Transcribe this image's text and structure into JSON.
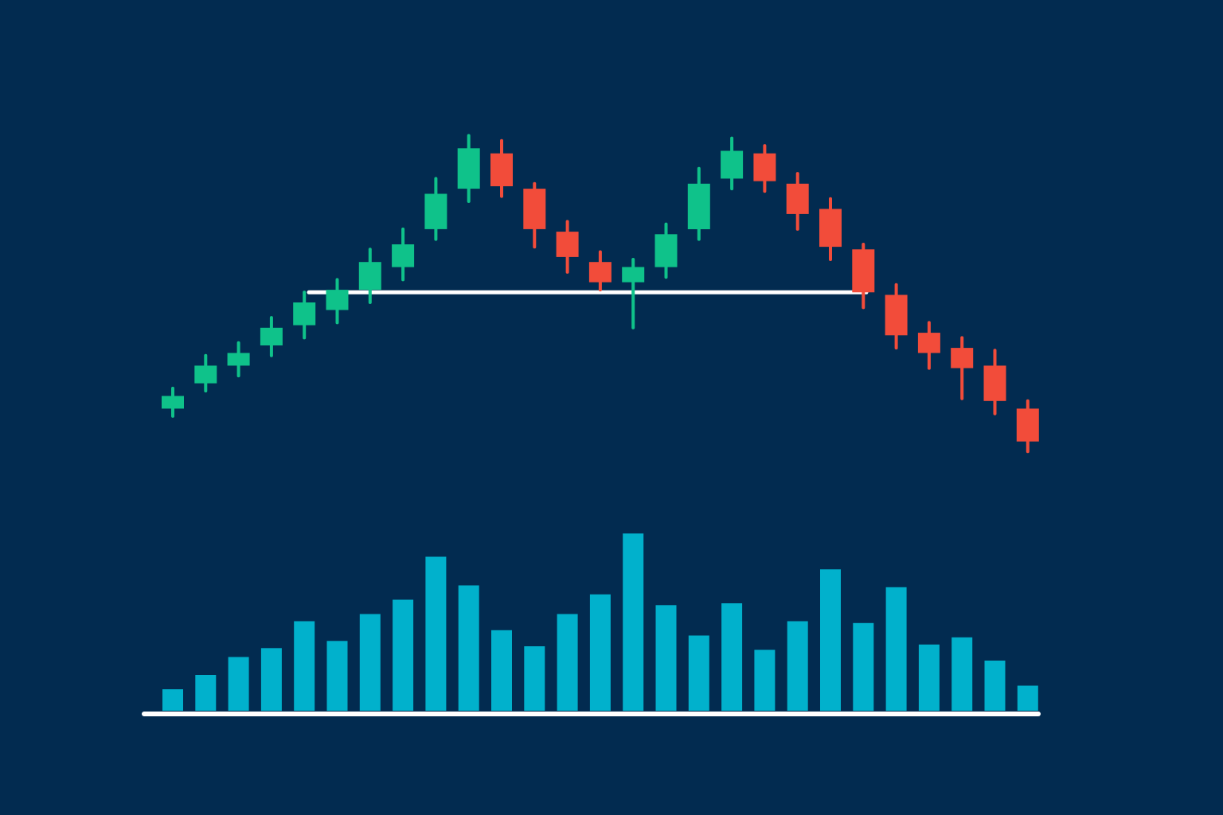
{
  "colors": {
    "background": "#022b50",
    "bullish": "#0fc28a",
    "bearish": "#f24c3a",
    "volume": "#01b1cc",
    "lines": "#ffffff"
  },
  "chart_data": {
    "type": "candlestick",
    "title": "",
    "xlabel": "",
    "ylabel": "",
    "grid": false,
    "legend": "none",
    "price_range": [
      0,
      100
    ],
    "volume_range": [
      0,
      100
    ],
    "neckline": 62,
    "candles": [
      {
        "i": 1,
        "open": 39.0,
        "close": 41.5,
        "high": 43.0,
        "low": 37.5,
        "volume": 12
      },
      {
        "i": 2,
        "open": 44.0,
        "close": 47.5,
        "high": 49.5,
        "low": 42.5,
        "volume": 20
      },
      {
        "i": 3,
        "open": 47.5,
        "close": 50.0,
        "high": 52.0,
        "low": 45.5,
        "volume": 30
      },
      {
        "i": 4,
        "open": 51.5,
        "close": 55.0,
        "high": 57.0,
        "low": 49.5,
        "volume": 35
      },
      {
        "i": 5,
        "open": 55.5,
        "close": 60.0,
        "high": 62.0,
        "low": 53.0,
        "volume": 50
      },
      {
        "i": 6,
        "open": 58.5,
        "close": 62.5,
        "high": 64.5,
        "low": 56.0,
        "volume": 39
      },
      {
        "i": 7,
        "open": 62.5,
        "close": 68.0,
        "high": 70.5,
        "low": 60.0,
        "volume": 54
      },
      {
        "i": 8,
        "open": 67.0,
        "close": 71.5,
        "high": 74.5,
        "low": 64.5,
        "volume": 62
      },
      {
        "i": 9,
        "open": 74.5,
        "close": 81.5,
        "high": 84.5,
        "low": 72.5,
        "volume": 86
      },
      {
        "i": 10,
        "open": 82.5,
        "close": 90.5,
        "high": 93.0,
        "low": 80.0,
        "volume": 70
      },
      {
        "i": 11,
        "open": 89.5,
        "close": 83.0,
        "high": 92.0,
        "low": 81.0,
        "volume": 45
      },
      {
        "i": 12,
        "open": 82.5,
        "close": 74.5,
        "high": 83.5,
        "low": 71.0,
        "volume": 36
      },
      {
        "i": 13,
        "open": 74.0,
        "close": 69.0,
        "high": 76.0,
        "low": 66.0,
        "volume": 54
      },
      {
        "i": 14,
        "open": 68.0,
        "close": 64.0,
        "high": 70.0,
        "low": 62.5,
        "volume": 65
      },
      {
        "i": 15,
        "open": 64.0,
        "close": 67.0,
        "high": 68.5,
        "low": 55.0,
        "volume": 99
      },
      {
        "i": 16,
        "open": 67.0,
        "close": 73.5,
        "high": 75.5,
        "low": 65.0,
        "volume": 59
      },
      {
        "i": 17,
        "open": 74.5,
        "close": 83.5,
        "high": 86.5,
        "low": 72.5,
        "volume": 42
      },
      {
        "i": 18,
        "open": 84.5,
        "close": 90.0,
        "high": 92.5,
        "low": 82.5,
        "volume": 60
      },
      {
        "i": 19,
        "open": 89.5,
        "close": 84.0,
        "high": 91.0,
        "low": 82.0,
        "volume": 34
      },
      {
        "i": 20,
        "open": 83.5,
        "close": 77.5,
        "high": 85.5,
        "low": 74.5,
        "volume": 50
      },
      {
        "i": 21,
        "open": 78.5,
        "close": 71.0,
        "high": 80.5,
        "low": 68.5,
        "volume": 79
      },
      {
        "i": 22,
        "open": 70.5,
        "close": 62.0,
        "high": 71.5,
        "low": 59.0,
        "volume": 49
      },
      {
        "i": 23,
        "open": 61.5,
        "close": 53.5,
        "high": 63.5,
        "low": 51.0,
        "volume": 69
      },
      {
        "i": 24,
        "open": 54.0,
        "close": 50.0,
        "high": 56.0,
        "low": 47.0,
        "volume": 37
      },
      {
        "i": 25,
        "open": 51.0,
        "close": 47.0,
        "high": 53.0,
        "low": 41.0,
        "volume": 41
      },
      {
        "i": 26,
        "open": 47.5,
        "close": 40.5,
        "high": 50.5,
        "low": 38.0,
        "volume": 28
      },
      {
        "i": 27,
        "open": 39.0,
        "close": 32.5,
        "high": 40.5,
        "low": 30.5,
        "volume": 14
      }
    ]
  }
}
